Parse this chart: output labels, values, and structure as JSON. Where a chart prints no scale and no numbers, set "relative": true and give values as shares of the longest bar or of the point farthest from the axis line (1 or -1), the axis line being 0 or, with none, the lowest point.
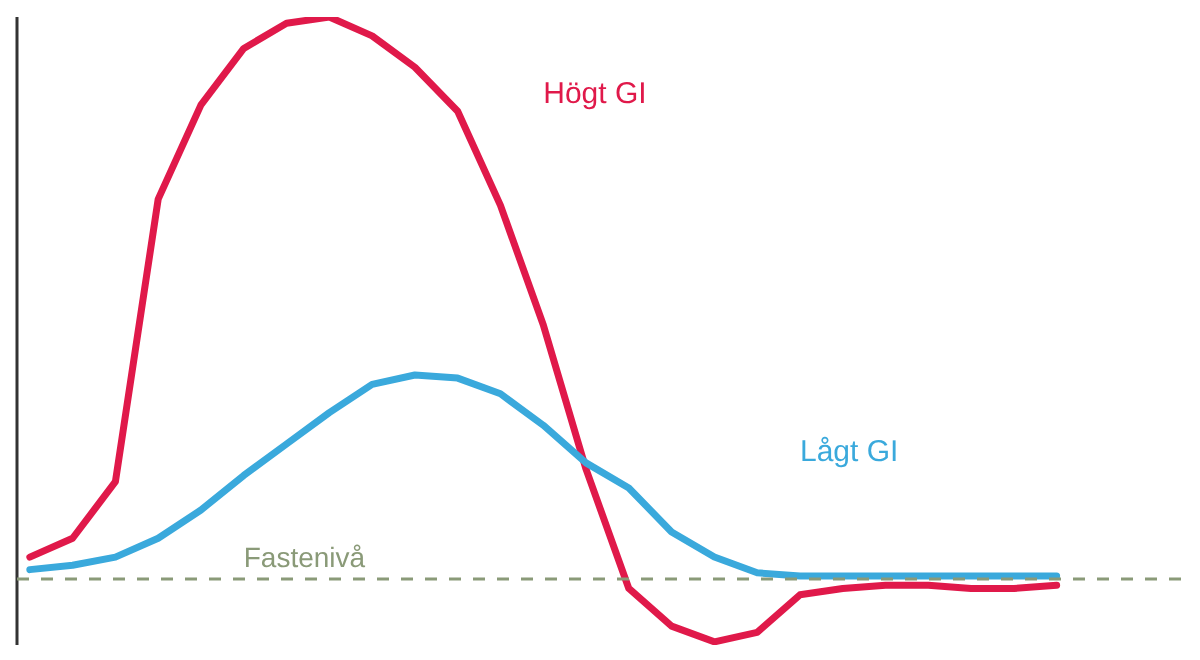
{
  "chart_data": {
    "type": "line",
    "relative": true,
    "tick_labels": false,
    "grid": false,
    "line_style": "solid",
    "marker": "none",
    "categories": [
      null,
      null,
      null,
      null,
      null,
      null,
      null,
      null,
      null,
      null,
      null,
      null,
      null,
      null,
      null,
      null,
      null,
      null,
      null,
      null,
      null,
      null,
      null,
      null,
      null
    ],
    "series": [
      {
        "name": "Högt GI",
        "color": "#e0194a",
        "values": [
          0.14,
          0.17,
          0.26,
          0.71,
          0.86,
          0.95,
          0.99,
          1.0,
          0.97,
          0.92,
          0.85,
          0.7,
          0.51,
          0.28,
          0.09,
          0.03,
          0.005,
          0.02,
          0.08,
          0.09,
          0.095,
          0.095,
          0.09,
          0.09,
          0.095
        ]
      },
      {
        "name": "Lågt GI",
        "color": "#3aa9dc",
        "values": [
          0.12,
          0.127,
          0.14,
          0.17,
          0.215,
          0.27,
          0.32,
          0.37,
          0.415,
          0.43,
          0.425,
          0.4,
          0.35,
          0.29,
          0.25,
          0.18,
          0.14,
          0.115,
          0.11,
          0.11,
          0.11,
          0.11,
          0.11,
          0.11,
          0.11
        ]
      }
    ],
    "ref_lines": [
      {
        "axis": "y",
        "value": 0.105,
        "label": "Fastenivå",
        "color": "#8a9a78",
        "line_style": "dashed"
      }
    ]
  }
}
